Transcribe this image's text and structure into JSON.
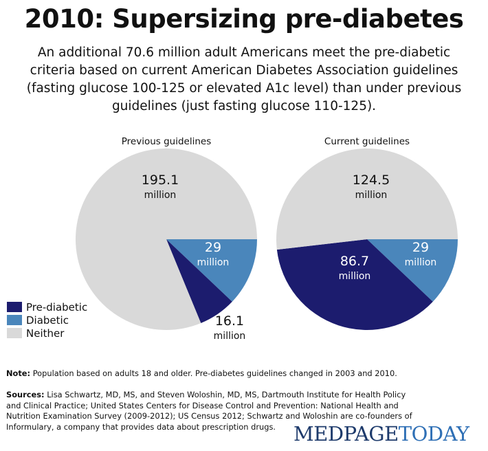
{
  "header": {
    "title": "2010: Supersizing pre-diabetes",
    "subtitle": "An additional 70.6 million adult Americans meet the pre-diabetic criteria based on current American Diabetes Association guidelines (fasting glucose 100-125 or elevated A1c level) than under previous guidelines (just fasting glucose 110-125)."
  },
  "chart_data": [
    {
      "type": "pie",
      "title": "Previous guidelines",
      "slices": [
        {
          "category": "Diabetic",
          "value": 29,
          "label_value": "29",
          "label_unit": "million",
          "color": "#4a86bb"
        },
        {
          "category": "Pre-diabetic",
          "value": 16.1,
          "label_value": "16.1",
          "label_unit": "million",
          "color": "#1c1c6e"
        },
        {
          "category": "Neither",
          "value": 195.1,
          "label_value": "195.1",
          "label_unit": "million",
          "color": "#d9d9d9"
        }
      ]
    },
    {
      "type": "pie",
      "title": "Current guidelines",
      "slices": [
        {
          "category": "Diabetic",
          "value": 29,
          "label_value": "29",
          "label_unit": "million",
          "color": "#4a86bb"
        },
        {
          "category": "Pre-diabetic",
          "value": 86.7,
          "label_value": "86.7",
          "label_unit": "million",
          "color": "#1c1c6e"
        },
        {
          "category": "Neither",
          "value": 124.5,
          "label_value": "124.5",
          "label_unit": "million",
          "color": "#d9d9d9"
        }
      ]
    }
  ],
  "legend": {
    "placement": "bottom-left",
    "items": [
      {
        "label": "Pre-diabetic",
        "color": "#1c1c6e"
      },
      {
        "label": "Diabetic",
        "color": "#4a86bb"
      },
      {
        "label": "Neither",
        "color": "#d9d9d9"
      }
    ]
  },
  "footer": {
    "note_label": "Note:",
    "note_text": " Population based on adults 18 and older. Pre-diabetes guidelines changed in 2003 and 2010.",
    "sources_label": "Sources:",
    "sources_text": " Lisa Schwartz, MD, MS, and Steven Woloshin,  MD, MS, Dartmouth Institute for Health Policy and Clinical Practice; United States Centers for Disease Control and Prevention: National Health and Nutrition Examination Survey (2009-2012); US Census 2012; Schwartz and Woloshin are co-founders of Informulary, a company that provides data about prescription drugs."
  },
  "logo": {
    "part1": "MEDPAGE",
    "part2": "TODAY"
  }
}
